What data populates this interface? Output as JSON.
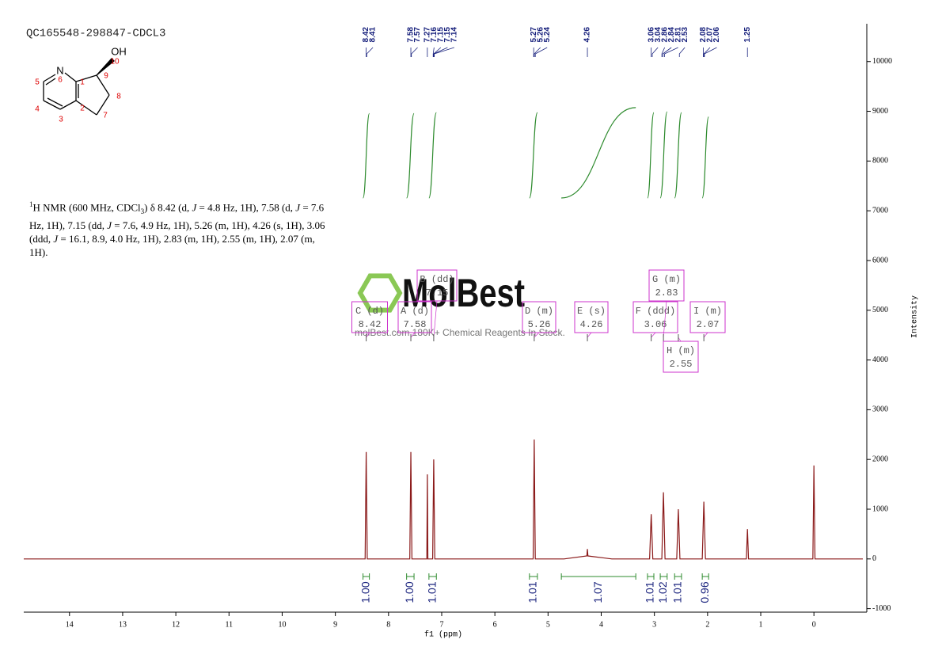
{
  "title": "QC165548-298847-CDCL3",
  "molecule": {
    "labels": [
      "OH",
      "10",
      "N",
      "6",
      "1",
      "9",
      "8",
      "7",
      "2",
      "3",
      "4",
      "5"
    ]
  },
  "description": {
    "parts": [
      "1",
      "H NMR (600 MHz, CDCl",
      "3",
      ") δ 8.42 (d, ",
      "J",
      " = 4.8 Hz, 1H), 7.58 (d, ",
      "J",
      " = 7.6 Hz, 1H), 7.15 (dd, ",
      "J",
      " = 7.6, 4.9 Hz, 1H), 5.26 (m, 1H), 4.26 (s, 1H), 3.06 (ddd, ",
      "J",
      " = 16.1, 8.9, 4.0 Hz, 1H), 2.83 (m, 1H), 2.55 (m, 1H), 2.07 (m, 1H)."
    ]
  },
  "watermark": {
    "name": "MolBest",
    "tagline": "molBest.com 180K+ Chemical Reagents In Stock."
  },
  "chart_data": {
    "type": "line",
    "x_label": "f1 (ppm)",
    "y_label": "Intensity",
    "xlim": [
      14.86,
      -0.92
    ],
    "ylim": [
      -1070,
      10760
    ],
    "xticks": [
      14,
      13,
      12,
      11,
      10,
      9,
      8,
      7,
      6,
      5,
      4,
      3,
      2,
      1,
      0
    ],
    "yticks": [
      -1000,
      0,
      1000,
      2000,
      3000,
      4000,
      5000,
      6000,
      7000,
      8000,
      9000,
      10000
    ],
    "grid": false,
    "color": "#8b1a1a",
    "x": [
      14.86,
      8.44,
      8.42,
      8.4,
      7.6,
      7.58,
      7.56,
      7.28,
      7.27,
      7.26,
      7.17,
      7.15,
      7.13,
      5.28,
      5.26,
      5.24,
      4.7,
      4.27,
      4.26,
      4.25,
      3.8,
      3.09,
      3.06,
      3.03,
      2.86,
      2.83,
      2.8,
      2.58,
      2.55,
      2.52,
      2.1,
      2.07,
      2.04,
      1.27,
      1.25,
      1.23,
      0.02,
      0,
      -0.02,
      -0.92
    ],
    "values": [
      0,
      0,
      2150,
      0,
      0,
      2150,
      0,
      0,
      1700,
      0,
      0,
      2000,
      0,
      0,
      2400,
      0,
      0,
      60,
      200,
      60,
      0,
      0,
      900,
      0,
      0,
      1340,
      0,
      0,
      1000,
      0,
      0,
      1150,
      0,
      0,
      600,
      0,
      0,
      1880,
      0,
      0
    ],
    "peak_labels": [
      8.42,
      8.41,
      7.58,
      7.57,
      7.27,
      7.16,
      7.15,
      7.15,
      7.14,
      5.27,
      5.26,
      5.24,
      4.26,
      3.06,
      3.04,
      2.86,
      2.84,
      2.81,
      2.53,
      2.08,
      2.07,
      2.06,
      1.25
    ],
    "multiplets": [
      {
        "label": "C (d)",
        "shift": 8.42
      },
      {
        "label": "A (d)",
        "shift": 7.58
      },
      {
        "label": "B (dd)",
        "shift": 7.15
      },
      {
        "label": "D (m)",
        "shift": 5.26
      },
      {
        "label": "E (s)",
        "shift": 4.26
      },
      {
        "label": "F (ddd)",
        "shift": 3.06
      },
      {
        "label": "G (m)",
        "shift": 2.83
      },
      {
        "label": "H (m)",
        "shift": 2.55
      },
      {
        "label": "I (m)",
        "shift": 2.07
      }
    ],
    "integrals": {
      "color": "#2e8b2e",
      "ranges": [
        [
          8.48,
          8.36
        ],
        [
          7.66,
          7.52
        ],
        [
          7.24,
          7.1
        ],
        [
          5.35,
          5.2
        ],
        [
          4.75,
          3.35
        ],
        [
          3.13,
          3.01
        ],
        [
          2.89,
          2.76
        ],
        [
          2.62,
          2.49
        ],
        [
          2.1,
          1.98
        ]
      ],
      "values": [
        1,
        1,
        1.01,
        1.01,
        1.07,
        1.01,
        1.02,
        1.01,
        0.96
      ],
      "value_labels": [
        "1.00",
        "1.00",
        "1.01",
        "1.01",
        "1.07",
        "1.01",
        "1.02",
        "1.01",
        "0.96"
      ]
    }
  }
}
